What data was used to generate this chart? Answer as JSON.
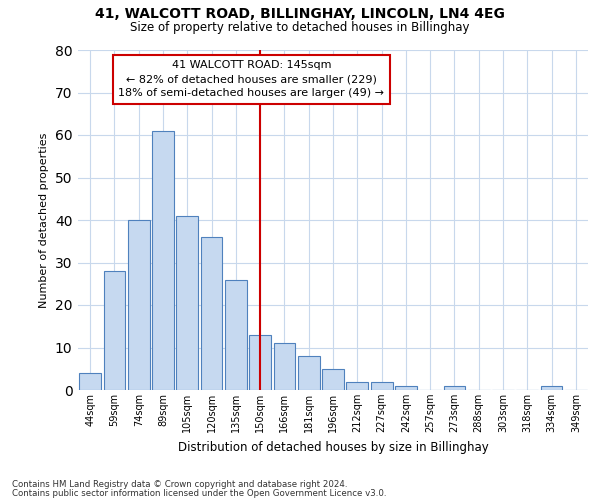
{
  "title": "41, WALCOTT ROAD, BILLINGHAY, LINCOLN, LN4 4EG",
  "subtitle": "Size of property relative to detached houses in Billinghay",
  "xlabel": "Distribution of detached houses by size in Billinghay",
  "ylabel": "Number of detached properties",
  "bar_labels": [
    "44sqm",
    "59sqm",
    "74sqm",
    "89sqm",
    "105sqm",
    "120sqm",
    "135sqm",
    "150sqm",
    "166sqm",
    "181sqm",
    "196sqm",
    "212sqm",
    "227sqm",
    "242sqm",
    "257sqm",
    "273sqm",
    "288sqm",
    "303sqm",
    "318sqm",
    "334sqm",
    "349sqm"
  ],
  "bar_values": [
    4,
    28,
    40,
    61,
    41,
    36,
    26,
    13,
    11,
    8,
    5,
    2,
    2,
    1,
    0,
    1,
    0,
    0,
    0,
    1,
    0
  ],
  "bar_color": "#c6d9f0",
  "bar_edge_color": "#4f81bd",
  "ylim": [
    0,
    80
  ],
  "yticks": [
    0,
    10,
    20,
    30,
    40,
    50,
    60,
    70,
    80
  ],
  "vline_bar_index": 7,
  "vline_color": "#cc0000",
  "annotation_title": "41 WALCOTT ROAD: 145sqm",
  "annotation_line1": "← 82% of detached houses are smaller (229)",
  "annotation_line2": "18% of semi-detached houses are larger (49) →",
  "annotation_box_color": "#ffffff",
  "annotation_box_edge": "#cc0000",
  "footnote1": "Contains HM Land Registry data © Crown copyright and database right 2024.",
  "footnote2": "Contains public sector information licensed under the Open Government Licence v3.0.",
  "background_color": "#ffffff",
  "grid_color": "#c8d8ec"
}
